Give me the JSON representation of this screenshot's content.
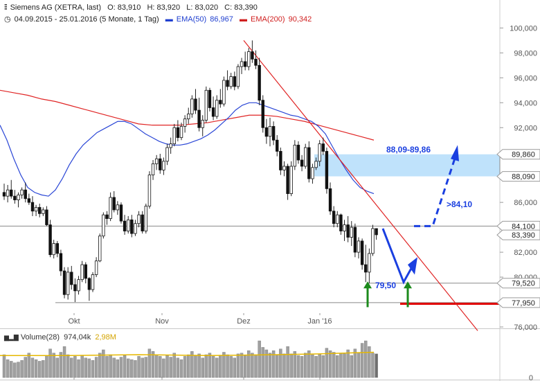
{
  "header": {
    "symbol": "Siemens AG (XETRA, last)",
    "open": "O: 83,910",
    "high": "H: 83,920",
    "low": "L: 83,020",
    "close": "C: 83,390",
    "period": "04.09.2015 - 25.01.2016 (5 Monate, 1 Tag)",
    "ema50_label": "EMA(50)",
    "ema50_value": "86,967",
    "ema200_label": "EMA(200)",
    "ema200_value": "90,342"
  },
  "volume_panel": {
    "label": "Volume(28)",
    "value": "974,04k",
    "average": "2,98M",
    "axis_label": "0"
  },
  "colors": {
    "ema50": "#2a46d6",
    "ema200": "#e02424",
    "trendline": "#e02424",
    "zone_fill": "#bfe2fb",
    "arrow_blue": "#1a3fe0",
    "arrow_green": "#1b8a1b",
    "support_red": "#e00000",
    "volume_bar": "#a0a0a0",
    "volume_avg": "#e6b800"
  },
  "chart_data": {
    "type": "candlestick",
    "title": "Siemens AG (XETRA, last)",
    "x_labels": [
      "Okt",
      "Nov",
      "Dez",
      "Jan '16"
    ],
    "y_ticks": [
      "100,000",
      "98,000",
      "96,000",
      "94,000",
      "92,000",
      "86,000",
      "82,000",
      "80,000",
      "76,000"
    ],
    "ylim": [
      76,
      100.8
    ],
    "price_labels": [
      "89,860",
      "88,090",
      "84,100",
      "83,390",
      "79,520",
      "77,950"
    ],
    "annotations": {
      "zone": "88,09-89,86",
      "target": ">84,10",
      "support": "79,50"
    },
    "candles": [
      [
        86.8,
        87.5,
        86.2,
        86.5
      ],
      [
        86.5,
        87.4,
        86.0,
        87.0
      ],
      [
        87.0,
        87.8,
        86.3,
        86.5
      ],
      [
        86.5,
        87.0,
        85.9,
        86.2
      ],
      [
        86.2,
        86.8,
        85.6,
        86.6
      ],
      [
        86.6,
        87.2,
        86.3,
        87.0
      ],
      [
        87.0,
        87.6,
        86.0,
        86.3
      ],
      [
        86.3,
        86.7,
        85.8,
        86.0
      ],
      [
        86.0,
        86.5,
        84.9,
        85.3
      ],
      [
        85.3,
        85.8,
        84.9,
        85.6
      ],
      [
        85.6,
        85.9,
        84.8,
        85.1
      ],
      [
        85.1,
        85.6,
        84.9,
        85.4
      ],
      [
        85.4,
        85.7,
        84.1,
        84.2
      ],
      [
        84.2,
        84.6,
        81.6,
        81.8
      ],
      [
        81.8,
        83.0,
        81.5,
        82.7
      ],
      [
        82.7,
        82.9,
        81.6,
        81.9
      ],
      [
        81.9,
        82.2,
        80.1,
        80.5
      ],
      [
        80.5,
        80.8,
        78.3,
        78.6
      ],
      [
        78.6,
        80.8,
        78.2,
        80.4
      ],
      [
        80.4,
        80.9,
        79.0,
        79.4
      ],
      [
        79.4,
        79.9,
        78.0,
        78.9
      ],
      [
        78.9,
        80.1,
        78.6,
        79.8
      ],
      [
        79.8,
        81.3,
        79.6,
        81.0
      ],
      [
        81.0,
        81.2,
        79.5,
        79.9
      ],
      [
        79.9,
        80.0,
        78.1,
        79.0
      ],
      [
        79.0,
        80.4,
        78.8,
        80.2
      ],
      [
        80.2,
        81.6,
        80.0,
        81.3
      ],
      [
        81.3,
        83.5,
        81.2,
        83.3
      ],
      [
        83.3,
        85.2,
        83.1,
        85.0
      ],
      [
        85.0,
        85.3,
        84.2,
        84.7
      ],
      [
        84.7,
        86.8,
        84.5,
        86.4
      ],
      [
        86.4,
        86.9,
        85.2,
        85.4
      ],
      [
        85.4,
        86.1,
        85.0,
        85.8
      ],
      [
        85.8,
        86.0,
        84.3,
        84.5
      ],
      [
        84.5,
        85.0,
        83.4,
        83.7
      ],
      [
        83.7,
        84.9,
        83.5,
        84.6
      ],
      [
        84.6,
        85.0,
        83.2,
        83.5
      ],
      [
        83.5,
        84.6,
        83.3,
        84.3
      ],
      [
        84.3,
        85.3,
        84.0,
        85.0
      ],
      [
        85.0,
        85.3,
        83.5,
        83.7
      ],
      [
        83.7,
        85.9,
        83.5,
        85.7
      ],
      [
        85.7,
        88.5,
        85.5,
        88.2
      ],
      [
        88.2,
        89.4,
        87.8,
        89.1
      ],
      [
        89.1,
        89.8,
        88.6,
        89.5
      ],
      [
        89.5,
        89.9,
        88.3,
        88.6
      ],
      [
        88.6,
        89.6,
        88.2,
        89.3
      ],
      [
        89.3,
        90.7,
        89.0,
        90.4
      ],
      [
        90.4,
        91.2,
        89.9,
        90.7
      ],
      [
        90.7,
        92.3,
        90.5,
        92.0
      ],
      [
        92.0,
        92.6,
        90.9,
        91.2
      ],
      [
        91.2,
        92.4,
        91.0,
        92.1
      ],
      [
        92.1,
        93.0,
        91.6,
        92.7
      ],
      [
        92.7,
        93.6,
        92.3,
        93.1
      ],
      [
        93.1,
        94.6,
        92.8,
        94.3
      ],
      [
        94.3,
        95.1,
        93.1,
        93.4
      ],
      [
        93.4,
        94.4,
        91.7,
        92.0
      ],
      [
        92.0,
        93.0,
        91.3,
        92.6
      ],
      [
        92.6,
        95.3,
        92.4,
        95.0
      ],
      [
        95.0,
        95.2,
        93.3,
        93.6
      ],
      [
        93.6,
        94.5,
        92.6,
        92.9
      ],
      [
        92.9,
        94.6,
        92.7,
        94.2
      ],
      [
        94.2,
        95.1,
        93.6,
        93.9
      ],
      [
        93.9,
        96.1,
        93.7,
        95.8
      ],
      [
        95.8,
        96.6,
        95.0,
        95.3
      ],
      [
        95.3,
        96.4,
        95.1,
        96.1
      ],
      [
        96.1,
        96.5,
        95.0,
        95.3
      ],
      [
        95.3,
        97.1,
        95.1,
        96.9
      ],
      [
        96.9,
        97.6,
        96.3,
        97.3
      ],
      [
        97.3,
        98.1,
        96.6,
        96.9
      ],
      [
        96.9,
        98.4,
        96.6,
        98.1
      ],
      [
        98.1,
        99.0,
        97.2,
        97.5
      ],
      [
        97.5,
        98.2,
        96.7,
        97.0
      ],
      [
        97.0,
        97.6,
        93.8,
        94.2
      ],
      [
        94.2,
        94.6,
        91.6,
        92.0
      ],
      [
        92.0,
        92.7,
        90.7,
        91.3
      ],
      [
        91.3,
        92.8,
        90.5,
        92.1
      ],
      [
        92.1,
        92.5,
        90.6,
        91.0
      ],
      [
        91.0,
        91.4,
        89.7,
        90.1
      ],
      [
        90.1,
        90.4,
        88.2,
        88.6
      ],
      [
        88.6,
        89.3,
        88.1,
        88.9
      ],
      [
        88.9,
        89.1,
        86.2,
        86.7
      ],
      [
        86.7,
        89.3,
        86.5,
        88.9
      ],
      [
        88.9,
        91.0,
        88.6,
        90.6
      ],
      [
        90.6,
        90.9,
        89.1,
        89.4
      ],
      [
        89.4,
        89.8,
        88.5,
        88.9
      ],
      [
        88.9,
        90.7,
        88.7,
        90.4
      ],
      [
        90.4,
        90.9,
        87.6,
        87.9
      ],
      [
        87.9,
        89.1,
        87.5,
        88.8
      ],
      [
        88.8,
        89.6,
        88.6,
        89.3
      ],
      [
        89.3,
        91.0,
        88.9,
        90.7
      ],
      [
        90.7,
        91.2,
        89.8,
        90.1
      ],
      [
        90.1,
        90.4,
        86.7,
        87.1
      ],
      [
        87.1,
        87.6,
        85.0,
        85.3
      ],
      [
        85.3,
        85.7,
        84.0,
        84.3
      ],
      [
        84.3,
        85.3,
        84.0,
        85.0
      ],
      [
        85.0,
        85.1,
        83.4,
        83.7
      ],
      [
        83.7,
        84.6,
        82.9,
        84.2
      ],
      [
        84.2,
        84.9,
        82.8,
        83.2
      ],
      [
        83.2,
        84.5,
        82.5,
        84.0
      ],
      [
        84.0,
        84.3,
        81.6,
        82.0
      ],
      [
        82.0,
        83.2,
        81.5,
        82.9
      ],
      [
        82.9,
        83.1,
        80.6,
        81.0
      ],
      [
        81.0,
        82.6,
        79.6,
        80.4
      ],
      [
        80.4,
        82.3,
        79.5,
        81.9
      ],
      [
        81.9,
        84.2,
        81.7,
        83.9
      ],
      [
        83.9,
        83.9,
        83.0,
        83.4
      ]
    ],
    "ema50": [
      [
        0,
        92.2
      ],
      [
        10,
        91.0
      ],
      [
        20,
        89.5
      ],
      [
        30,
        88.2
      ],
      [
        40,
        87.2
      ],
      [
        50,
        86.8
      ],
      [
        60,
        86.6
      ],
      [
        70,
        86.5
      ],
      [
        80,
        87.0
      ],
      [
        90,
        87.9
      ],
      [
        100,
        89.0
      ],
      [
        110,
        89.9
      ],
      [
        120,
        90.6
      ],
      [
        130,
        91.1
      ],
      [
        140,
        91.6
      ],
      [
        150,
        91.9
      ],
      [
        160,
        92.2
      ],
      [
        170,
        92.5
      ],
      [
        180,
        92.5
      ],
      [
        190,
        92.3
      ],
      [
        200,
        91.9
      ],
      [
        210,
        91.5
      ],
      [
        220,
        91.2
      ],
      [
        230,
        90.9
      ],
      [
        240,
        90.7
      ],
      [
        250,
        90.6
      ],
      [
        260,
        90.6
      ],
      [
        270,
        90.7
      ],
      [
        280,
        90.9
      ],
      [
        290,
        91.1
      ],
      [
        300,
        91.4
      ],
      [
        310,
        91.8
      ],
      [
        320,
        92.3
      ],
      [
        330,
        92.8
      ],
      [
        340,
        93.4
      ],
      [
        350,
        93.8
      ],
      [
        360,
        94.0
      ],
      [
        370,
        94.0
      ],
      [
        380,
        93.8
      ],
      [
        390,
        93.6
      ],
      [
        400,
        93.4
      ],
      [
        410,
        93.2
      ],
      [
        420,
        93.0
      ],
      [
        430,
        92.9
      ],
      [
        440,
        92.7
      ],
      [
        450,
        92.5
      ],
      [
        460,
        92.1
      ],
      [
        470,
        91.5
      ],
      [
        480,
        90.5
      ],
      [
        490,
        89.5
      ],
      [
        500,
        88.6
      ],
      [
        510,
        87.8
      ],
      [
        520,
        87.2
      ],
      [
        530,
        86.9
      ],
      [
        540,
        86.7
      ]
    ],
    "ema200": [
      [
        0,
        95.0
      ],
      [
        20,
        94.8
      ],
      [
        40,
        94.6
      ],
      [
        60,
        94.3
      ],
      [
        80,
        94.1
      ],
      [
        100,
        93.8
      ],
      [
        120,
        93.5
      ],
      [
        140,
        93.2
      ],
      [
        160,
        92.9
      ],
      [
        180,
        92.6
      ],
      [
        200,
        92.3
      ],
      [
        220,
        92.2
      ],
      [
        240,
        92.2
      ],
      [
        260,
        92.2
      ],
      [
        280,
        92.3
      ],
      [
        300,
        92.4
      ],
      [
        320,
        92.6
      ],
      [
        340,
        92.8
      ],
      [
        360,
        93.0
      ],
      [
        380,
        93.0
      ],
      [
        400,
        92.9
      ],
      [
        420,
        92.7
      ],
      [
        440,
        92.5
      ],
      [
        460,
        92.2
      ],
      [
        480,
        91.9
      ],
      [
        500,
        91.6
      ],
      [
        520,
        91.3
      ],
      [
        540,
        91.0
      ]
    ],
    "trendline": [
      [
        352,
        99.0
      ],
      [
        690,
        75.7
      ]
    ],
    "zone_range": [
      88.09,
      89.86
    ],
    "support_level": 77.95,
    "reference_level": 84.1,
    "low_level": 79.52,
    "volume": [
      28,
      22,
      20,
      18,
      19,
      21,
      25,
      30,
      24,
      22,
      20,
      21,
      27,
      35,
      30,
      24,
      31,
      38,
      28,
      24,
      26,
      22,
      27,
      24,
      23,
      21,
      25,
      30,
      34,
      26,
      28,
      24,
      22,
      25,
      27,
      23,
      22,
      21,
      26,
      24,
      25,
      35,
      32,
      28,
      26,
      23,
      27,
      25,
      30,
      24,
      22,
      26,
      28,
      32,
      27,
      29,
      24,
      28,
      30,
      26,
      24,
      27,
      31,
      28,
      26,
      24,
      29,
      30,
      27,
      33,
      30,
      28,
      45,
      37,
      34,
      30,
      33,
      28,
      35,
      29,
      38,
      29,
      32,
      27,
      26,
      30,
      33,
      28,
      26,
      29,
      27,
      36,
      33,
      31,
      27,
      30,
      29,
      34,
      27,
      35,
      30,
      42,
      45,
      38,
      30,
      29
    ],
    "volume_avg": [
      [
        0,
        27
      ],
      [
        100,
        27
      ],
      [
        200,
        28
      ],
      [
        300,
        27
      ],
      [
        400,
        28
      ],
      [
        460,
        29
      ],
      [
        500,
        30
      ],
      [
        540,
        31
      ]
    ]
  }
}
